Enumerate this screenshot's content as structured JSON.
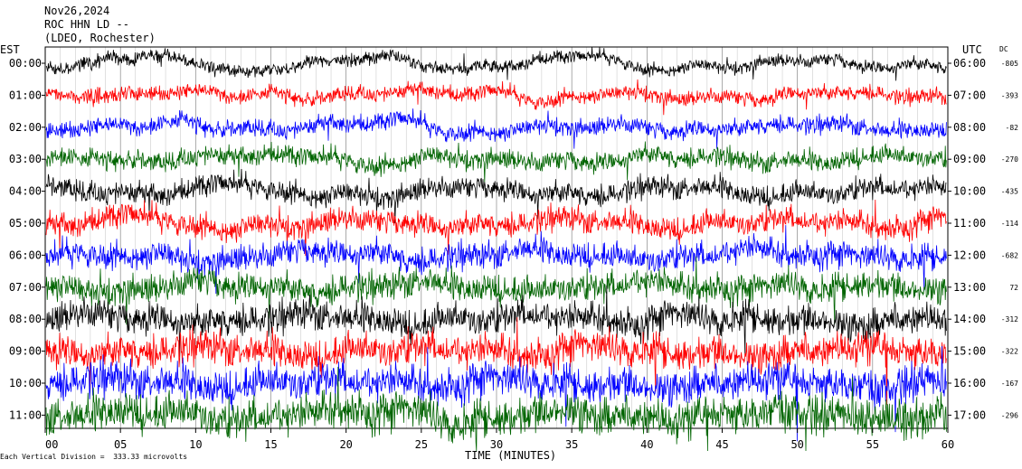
{
  "header": {
    "date": "Nov26,2024",
    "station": "ROC HHN LD --",
    "network": "(LDEO, Rochester)"
  },
  "left_axis_label": "EST",
  "right_axis_label": "UTC",
  "dc_label": "DC",
  "footer_note": "Each Vertical Division =  333.33 microvolts",
  "chart_data": {
    "type": "line",
    "xlabel": "TIME (MINUTES)",
    "xlim": [
      0,
      60
    ],
    "x_ticks": [
      "00",
      "05",
      "10",
      "15",
      "20",
      "25",
      "30",
      "35",
      "40",
      "45",
      "50",
      "55",
      "60"
    ],
    "trace_colors": [
      "#000000",
      "#ff0000",
      "#0000ff",
      "#006400"
    ],
    "rows": [
      {
        "est": "00:00",
        "utc": "06:00",
        "dc": "-805"
      },
      {
        "est": "01:00",
        "utc": "07:00",
        "dc": "-393"
      },
      {
        "est": "02:00",
        "utc": "08:00",
        "dc": "-82"
      },
      {
        "est": "03:00",
        "utc": "09:00",
        "dc": "-270"
      },
      {
        "est": "04:00",
        "utc": "10:00",
        "dc": "-435"
      },
      {
        "est": "05:00",
        "utc": "11:00",
        "dc": "-114"
      },
      {
        "est": "06:00",
        "utc": "12:00",
        "dc": "-682"
      },
      {
        "est": "07:00",
        "utc": "13:00",
        "dc": "72"
      },
      {
        "est": "08:00",
        "utc": "14:00",
        "dc": "-312"
      },
      {
        "est": "09:00",
        "utc": "15:00",
        "dc": "-322"
      },
      {
        "est": "10:00",
        "utc": "16:00",
        "dc": "-167"
      },
      {
        "est": "11:00",
        "utc": "17:00",
        "dc": "-296"
      }
    ]
  }
}
